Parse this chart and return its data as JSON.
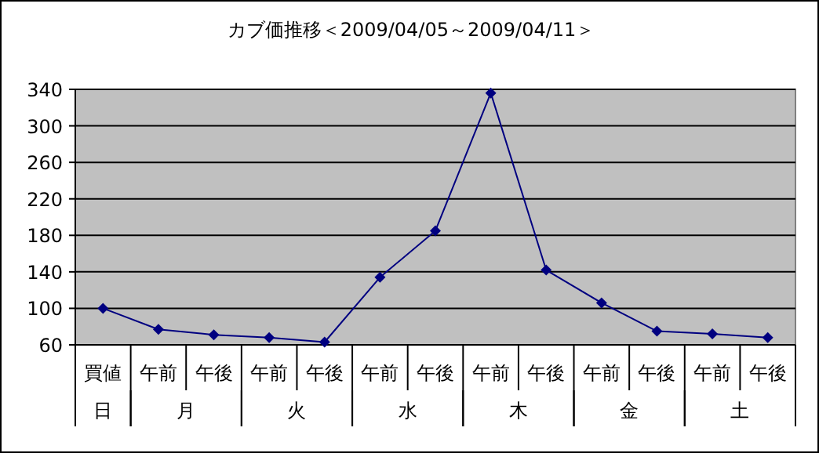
{
  "chart_data": {
    "type": "line",
    "title": "カブ価推移＜2009/04/05～2009/04/11＞",
    "categories": [
      "買値",
      "午前",
      "午後",
      "午前",
      "午後",
      "午前",
      "午後",
      "午前",
      "午後",
      "午前",
      "午後",
      "午前",
      "午後"
    ],
    "annotations": [
      "日",
      "月",
      "火",
      "水",
      "木",
      "金",
      "土"
    ],
    "series": [
      {
        "color": "#000080",
        "values": [
          100,
          77,
          71,
          68,
          63,
          134,
          185,
          336,
          142,
          106,
          75,
          72,
          68
        ]
      }
    ],
    "ylim": [
      60,
      340
    ],
    "yticks": [
      60,
      100,
      140,
      180,
      220,
      260,
      300,
      340
    ],
    "grid": "y",
    "marker": "diamond"
  }
}
